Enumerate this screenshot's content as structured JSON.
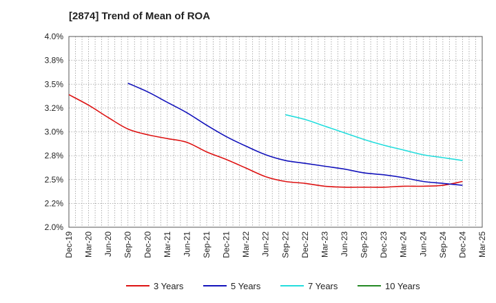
{
  "chart_data": {
    "type": "line",
    "title": "[2874]  Trend of Mean of ROA",
    "xlabel": "",
    "ylabel": "",
    "ylim": [
      2.0,
      4.0
    ],
    "ytick_labels": [
      "2.0%",
      "2.2%",
      "2.5%",
      "2.8%",
      "3.0%",
      "3.2%",
      "3.5%",
      "3.8%",
      "4.0%"
    ],
    "x_start": "2019-12",
    "x_end": "2025-03",
    "x_tick_labels": [
      "Dec-19",
      "Mar-20",
      "Jun-20",
      "Sep-20",
      "Dec-20",
      "Mar-21",
      "Jun-21",
      "Sep-21",
      "Dec-21",
      "Mar-22",
      "Jun-22",
      "Sep-22",
      "Dec-22",
      "Mar-23",
      "Jun-23",
      "Sep-23",
      "Dec-23",
      "Mar-24",
      "Jun-24",
      "Sep-24",
      "Dec-24",
      "Mar-25"
    ],
    "grid": true,
    "legend_position": "bottom",
    "series": [
      {
        "name": "3 Years",
        "color": "#dd1111",
        "points": [
          [
            "2019-12",
            3.39
          ],
          [
            "2020-03",
            3.28
          ],
          [
            "2020-06",
            3.15
          ],
          [
            "2020-09",
            3.03
          ],
          [
            "2020-12",
            2.97
          ],
          [
            "2021-03",
            2.93
          ],
          [
            "2021-06",
            2.89
          ],
          [
            "2021-09",
            2.79
          ],
          [
            "2021-12",
            2.71
          ],
          [
            "2022-03",
            2.62
          ],
          [
            "2022-06",
            2.53
          ],
          [
            "2022-09",
            2.48
          ],
          [
            "2022-12",
            2.46
          ],
          [
            "2023-03",
            2.43
          ],
          [
            "2023-06",
            2.42
          ],
          [
            "2023-09",
            2.42
          ],
          [
            "2023-12",
            2.42
          ],
          [
            "2024-03",
            2.43
          ],
          [
            "2024-06",
            2.43
          ],
          [
            "2024-09",
            2.44
          ],
          [
            "2024-12",
            2.48
          ]
        ]
      },
      {
        "name": "5 Years",
        "color": "#1111bb",
        "points": [
          [
            "2020-09",
            3.51
          ],
          [
            "2020-12",
            3.42
          ],
          [
            "2021-03",
            3.31
          ],
          [
            "2021-06",
            3.2
          ],
          [
            "2021-09",
            3.07
          ],
          [
            "2021-12",
            2.95
          ],
          [
            "2022-03",
            2.85
          ],
          [
            "2022-06",
            2.76
          ],
          [
            "2022-09",
            2.7
          ],
          [
            "2022-12",
            2.67
          ],
          [
            "2023-03",
            2.64
          ],
          [
            "2023-06",
            2.61
          ],
          [
            "2023-09",
            2.57
          ],
          [
            "2023-12",
            2.55
          ],
          [
            "2024-03",
            2.52
          ],
          [
            "2024-06",
            2.48
          ],
          [
            "2024-09",
            2.46
          ],
          [
            "2024-12",
            2.44
          ]
        ]
      },
      {
        "name": "7 Years",
        "color": "#22dddd",
        "points": [
          [
            "2022-09",
            3.18
          ],
          [
            "2022-12",
            3.13
          ],
          [
            "2023-03",
            3.06
          ],
          [
            "2023-06",
            2.99
          ],
          [
            "2023-09",
            2.92
          ],
          [
            "2023-12",
            2.86
          ],
          [
            "2024-03",
            2.81
          ],
          [
            "2024-06",
            2.76
          ],
          [
            "2024-09",
            2.73
          ],
          [
            "2024-12",
            2.7
          ]
        ]
      },
      {
        "name": "10 Years",
        "color": "#228822",
        "points": []
      }
    ]
  }
}
